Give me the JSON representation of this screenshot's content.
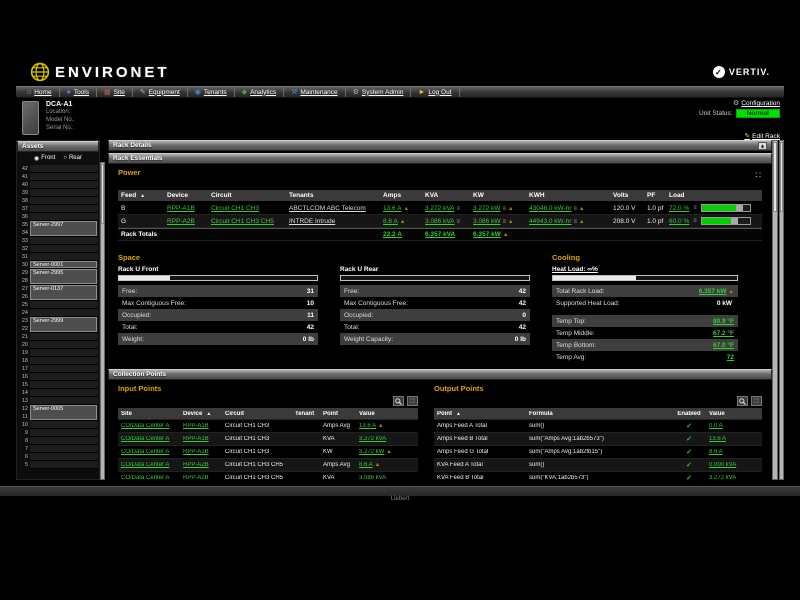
{
  "header": {
    "app_logo": "ENVIRONET",
    "brand": "VERTIV.",
    "menu": [
      {
        "name": "menu-item-home",
        "icon_name": "home-icon",
        "glyph": "⌂",
        "color": "#f0a830",
        "label": "Home"
      },
      {
        "name": "menu-item-tools",
        "icon_name": "tools-icon",
        "glyph": "●",
        "color": "#4a86d8",
        "label": "Tools"
      },
      {
        "name": "menu-item-site",
        "icon_name": "site-icon",
        "glyph": "▦",
        "color": "#c05a5a",
        "label": "Site"
      },
      {
        "name": "menu-item-equipment",
        "icon_name": "equipment-icon",
        "glyph": "✎",
        "color": "#a8b0b8",
        "label": "Equipment"
      },
      {
        "name": "menu-item-tenants",
        "icon_name": "tenants-icon",
        "glyph": "◉",
        "color": "#4a86d8",
        "label": "Tenants"
      },
      {
        "name": "menu-item-analytics",
        "icon_name": "analytics-icon",
        "glyph": "◆",
        "color": "#46a046",
        "label": "Analytics"
      },
      {
        "name": "menu-item-maintenance",
        "icon_name": "maintenance-icon",
        "glyph": "⚒",
        "color": "#4a86d8",
        "label": "Maintenance"
      },
      {
        "name": "menu-item-system-admin",
        "icon_name": "system-admin-icon",
        "glyph": "⚙",
        "color": "#b8b8b8",
        "label": "System Admin"
      },
      {
        "name": "menu-item-log-out",
        "icon_name": "log-out-icon",
        "glyph": "►",
        "color": "#e8c020",
        "label": "Log Out"
      }
    ]
  },
  "unit": {
    "name": "DCA-A1",
    "location_label": "Location:",
    "model_label": "Model No.:",
    "serial_label": "Serial No.:",
    "configuration_label": "Configuration",
    "status_label": "Unit Status:",
    "status_value": "Normal",
    "status_color": "#00e000",
    "edit_rack_label": "Edit Rack"
  },
  "assets": {
    "title": "Assets",
    "front_label": "Front",
    "rear_label": "Rear",
    "front_selected": true,
    "slots": [
      {
        "u": "42"
      },
      {
        "u": "41"
      },
      {
        "u": "40"
      },
      {
        "u": "39"
      },
      {
        "u": "38"
      },
      {
        "u": "37"
      },
      {
        "u": "36"
      },
      {
        "u": "35",
        "server": "Server-2997",
        "spancls": "span2"
      },
      {
        "u": "34"
      },
      {
        "u": "33"
      },
      {
        "u": "32"
      },
      {
        "u": "31"
      },
      {
        "u": "30",
        "server": "Server-0001",
        "spancls": ""
      },
      {
        "u": "29",
        "server": "Server-2995",
        "spancls": "span2"
      },
      {
        "u": "28"
      },
      {
        "u": "27",
        "server": "Server-0137",
        "spancls": "span2"
      },
      {
        "u": "26"
      },
      {
        "u": "25"
      },
      {
        "u": "24"
      },
      {
        "u": "23",
        "server": "Server-2999",
        "spancls": "span2"
      },
      {
        "u": "22"
      },
      {
        "u": "21"
      },
      {
        "u": "20"
      },
      {
        "u": "19"
      },
      {
        "u": "18"
      },
      {
        "u": "17"
      },
      {
        "u": "16"
      },
      {
        "u": "15"
      },
      {
        "u": "14"
      },
      {
        "u": "13"
      },
      {
        "u": "12",
        "server": "Server-0005",
        "spancls": "span2"
      },
      {
        "u": "11"
      },
      {
        "u": "10"
      },
      {
        "u": "9"
      },
      {
        "u": "8"
      },
      {
        "u": "7"
      },
      {
        "u": "6"
      },
      {
        "u": "5"
      }
    ]
  },
  "rack": {
    "details_title": "Rack Details",
    "essentials_title": "Rack Essentials",
    "collection_title": "Collection Points"
  },
  "power": {
    "title": "Power",
    "columns": [
      "Feed",
      "Device",
      "Circuit",
      "Tenants",
      "Amps",
      "KVA",
      "KW",
      "KWH",
      "Volts",
      "PF",
      "Load"
    ],
    "rows": [
      {
        "feed": "B",
        "device": "RPP-A1B",
        "circuit": "Circuit CH1 CH3",
        "tenants": "ABCTLCOM ABC Telecom",
        "amps": "13.6 A",
        "kva": "3.272 kVA",
        "kw": "3.272 kW",
        "kwh": "43048.0 kW-hr",
        "volts": "120.0 V",
        "pf": "1.0 pf",
        "load": "72.0 %",
        "load_pct": 72,
        "altcls": ""
      },
      {
        "feed": "G",
        "device": "RPP-A2B",
        "circuit": "Circuit CH1 CH3 CH5",
        "tenants": "INTRDE Intrude",
        "amps": "8.6 A",
        "kva": "3.086 kVA",
        "kw": "3.086 kW",
        "kwh": "44943.0 kW-hr",
        "volts": "208.0 V",
        "pf": "1.0 pf",
        "load": "60.0 %",
        "load_pct": 60,
        "altcls": "alt"
      }
    ],
    "totals": {
      "label": "Rack Totals",
      "amps": "22.2 A",
      "kva": "6.357 kVA",
      "kw": "6.357 kW"
    }
  },
  "space": {
    "title": "Space",
    "front": {
      "title": "Rack U Front",
      "bar_pct": 26,
      "rows": [
        {
          "label": "Free:",
          "value": "31",
          "cls": "shaded"
        },
        {
          "label": "Max Contiguous Free:",
          "value": "10",
          "cls": ""
        },
        {
          "label": "Occupied:",
          "value": "11",
          "cls": "shaded"
        },
        {
          "label": "Total:",
          "value": "42",
          "cls": ""
        },
        {
          "label": "Weight:",
          "value": "0 lb",
          "cls": "shaded"
        }
      ]
    },
    "rear": {
      "title": "Rack U Rear",
      "bar_pct": 0,
      "rows": [
        {
          "label": "Free:",
          "value": "42",
          "cls": "shaded"
        },
        {
          "label": "Max Contiguous Free:",
          "value": "42",
          "cls": ""
        },
        {
          "label": "Occupied:",
          "value": "0",
          "cls": "shaded"
        },
        {
          "label": "Total:",
          "value": "42",
          "cls": ""
        },
        {
          "label": "Weight Capacity:",
          "value": "0 lb",
          "cls": "shaded"
        }
      ]
    }
  },
  "cooling": {
    "title": "Cooling",
    "heat_load_label": "Heat Load: ∞%",
    "bar_pct": 45,
    "load_rows": [
      {
        "label": "Total Rack Load:",
        "value": "6.357 kW",
        "cls": "shaded",
        "vcls": "glink gl-bold",
        "arrow": "▲"
      },
      {
        "label": "Supported Heat Load:",
        "value": "0 kW",
        "cls": "",
        "vcls": "white-bold",
        "arrow": ""
      }
    ],
    "temp_rows": [
      {
        "label": "Temp Top:",
        "value": "80.9 °F",
        "cls": "shaded",
        "vcls": "glink gl-bold"
      },
      {
        "label": "Temp Middle:",
        "value": "67.2 °F",
        "cls": "",
        "vcls": "glink gl-bold"
      },
      {
        "label": "Temp Bottom:",
        "value": "67.0 °F",
        "cls": "shaded",
        "vcls": "glink gl-bold"
      },
      {
        "label": "Temp Avg:",
        "value": "72",
        "cls": "",
        "vcls": "glink gl-bold"
      }
    ]
  },
  "input_points": {
    "title": "Input Points",
    "columns": [
      "Site",
      "Device",
      "Circuit",
      "Tenant",
      "Point",
      "Value"
    ],
    "rows": [
      {
        "site": "CO/Data Center A",
        "device": "RPP-A1B",
        "circuit": "Circuit CH1 CH3",
        "tenant": "",
        "point": "Amps Avg",
        "value": "13.6 A",
        "arrow": "▲",
        "altcls": ""
      },
      {
        "site": "CO/Data Center A",
        "device": "RPP-A1B",
        "circuit": "Circuit CH1 CH3",
        "tenant": "",
        "point": "KVA",
        "value": "3.272 kVA",
        "arrow": "",
        "altcls": "alt"
      },
      {
        "site": "CO/Data Center A",
        "device": "RPP-A1B",
        "circuit": "Circuit CH1 CH3",
        "tenant": "",
        "point": "KW",
        "value": "3.272 kW",
        "arrow": "▲",
        "altcls": ""
      },
      {
        "site": "CO/Data Center A",
        "device": "RPP-A2B",
        "circuit": "Circuit CH1 CH3 CH5",
        "tenant": "",
        "point": "Amps Avg",
        "value": "8.6 A",
        "arrow": "▲",
        "altcls": "alt"
      },
      {
        "site": "CO/Data Center A",
        "device": "RPP-A2B",
        "circuit": "Circuit CH1 CH3 CH5",
        "tenant": "",
        "point": "KVA",
        "value": "3.086 kVA",
        "arrow": "",
        "altcls": ""
      }
    ]
  },
  "output_points": {
    "title": "Output Points",
    "columns": [
      "Point",
      "Formula",
      "Enabled",
      "Value"
    ],
    "rows": [
      {
        "point": "Amps Feed A Total",
        "formula": "sum()",
        "enabled": "✓",
        "value": "0.0 A",
        "altcls": ""
      },
      {
        "point": "Amps Feed B Total",
        "formula": "sum(\"Amps Avg:1ab2b573\")",
        "enabled": "✓",
        "value": "13.6 A",
        "altcls": "alt"
      },
      {
        "point": "Amps Feed G Total",
        "formula": "sum(\"Amps Avg:1ab2fb15\")",
        "enabled": "✓",
        "value": "8.6 A",
        "altcls": ""
      },
      {
        "point": "KVA Feed A Total",
        "formula": "sum()",
        "enabled": "✓",
        "value": "0.000 kVA",
        "altcls": "alt"
      },
      {
        "point": "KVA Feed B Total",
        "formula": "sum(\"KVA:1ab2b573\")",
        "enabled": "✓",
        "value": "3.272 kVA",
        "altcls": ""
      }
    ]
  },
  "footer": {
    "text": "Liebert"
  }
}
